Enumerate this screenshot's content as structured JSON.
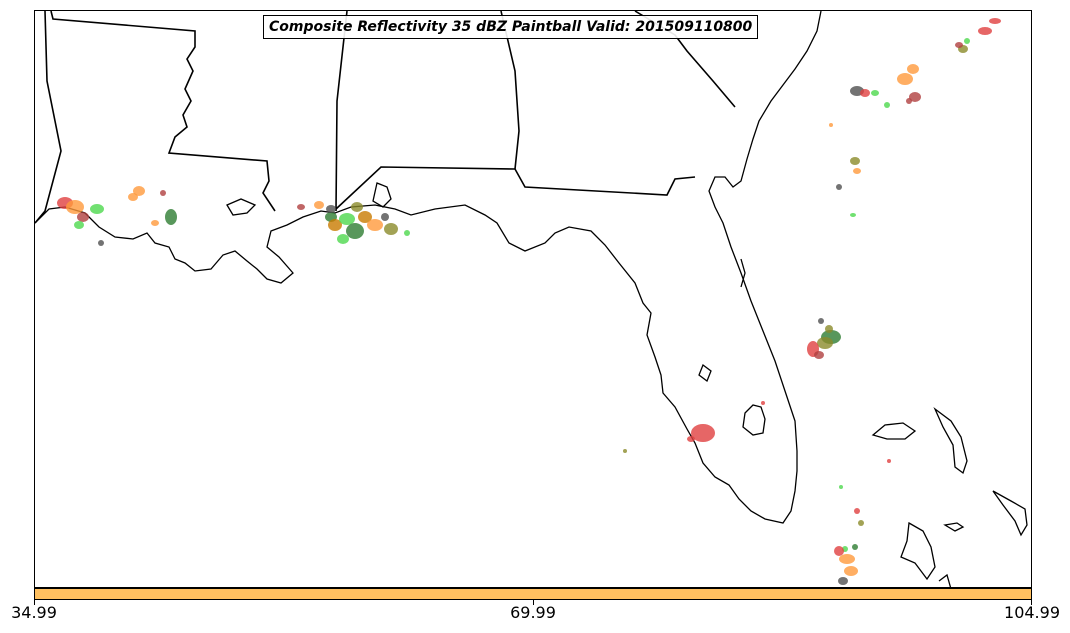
{
  "title": "Composite Reflectivity 35 dBZ Paintball Valid: 201509110800",
  "colorbar": {
    "color": "#ffc060",
    "ticks": [
      "34.99",
      "69.99",
      "104.99"
    ]
  },
  "basemap": {
    "coastline_color": "#000000",
    "state_border_color": "#000000",
    "land_color": "#ffffff"
  },
  "member_colors": [
    "#e04040",
    "#ff9a3c",
    "#4ed84e",
    "#2e7d32",
    "#8b8b2b",
    "#b04040",
    "#505050",
    "#c87a00"
  ]
}
